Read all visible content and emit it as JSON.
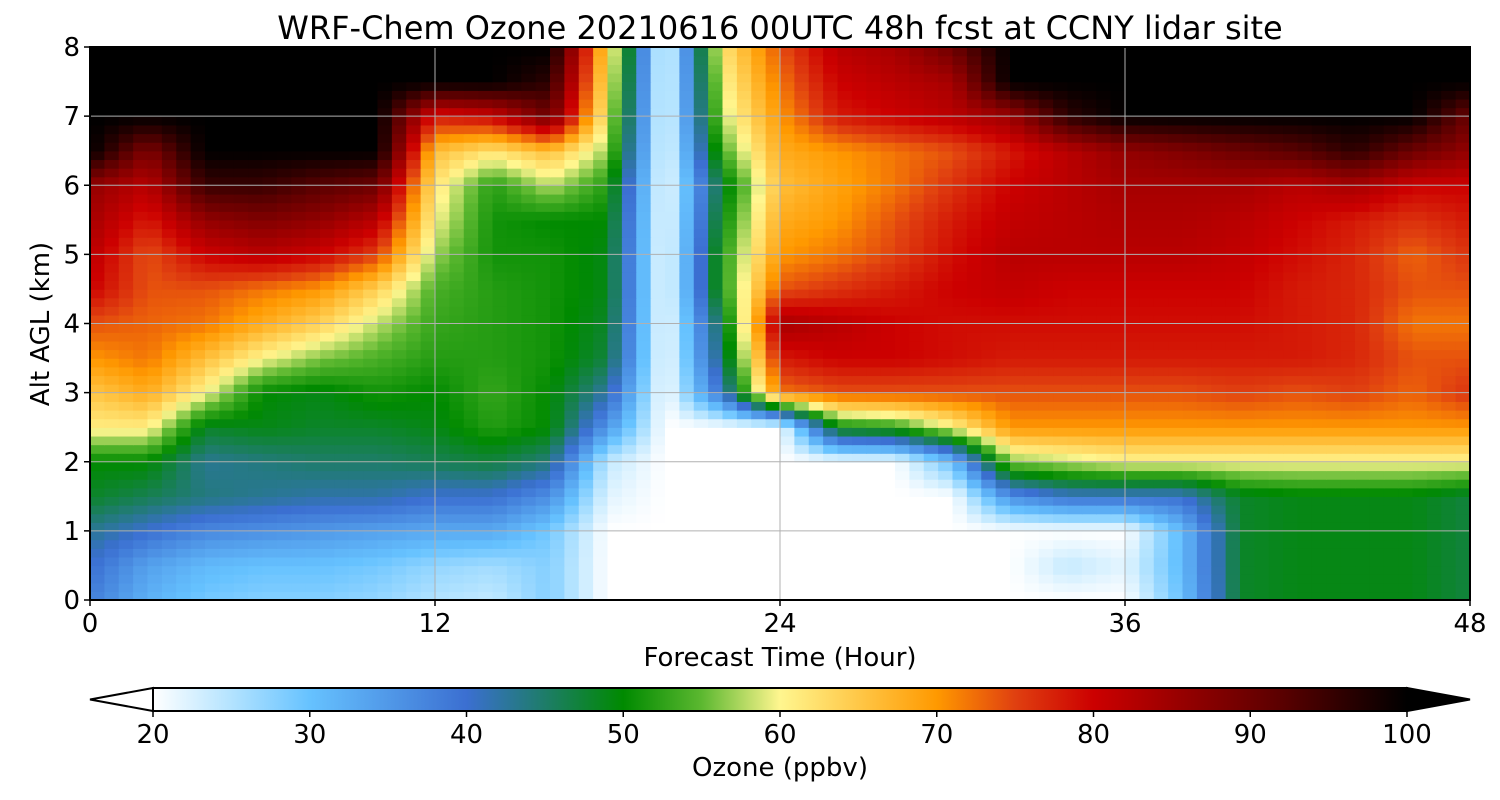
{
  "chart_data": {
    "type": "heatmap",
    "title": "WRF-Chem Ozone  20210616 00UTC 48h fcst at CCNY lidar site",
    "xlabel": "Forecast Time (Hour)",
    "ylabel": "Alt AGL (km)",
    "xlim": [
      0,
      48
    ],
    "ylim": [
      0,
      8
    ],
    "x_ticks": [
      0,
      12,
      24,
      36,
      48
    ],
    "y_ticks": [
      0,
      1,
      2,
      3,
      4,
      5,
      6,
      7,
      8
    ],
    "grid": true,
    "x": [
      0,
      2,
      4,
      6,
      8,
      10,
      12,
      14,
      16,
      18,
      20,
      22,
      24,
      26,
      28,
      30,
      32,
      34,
      36,
      38,
      40,
      42,
      44,
      46,
      48
    ],
    "y": [
      0,
      0.5,
      1,
      1.5,
      2,
      2.5,
      3,
      3.5,
      4,
      4.5,
      5,
      5.5,
      6,
      6.5,
      7,
      7.5,
      8
    ],
    "z": [
      [
        38,
        32,
        29,
        28,
        28,
        27,
        25,
        24,
        28,
        20,
        20,
        20,
        20,
        20,
        20,
        20,
        20,
        20,
        20,
        30,
        48,
        49,
        49,
        49,
        47
      ],
      [
        40,
        34,
        31,
        30,
        30,
        29,
        27,
        26,
        28,
        20,
        20,
        20,
        20,
        20,
        20,
        20,
        20,
        24,
        22,
        31,
        48,
        49,
        49,
        49,
        47
      ],
      [
        43,
        40,
        37,
        36,
        35,
        34,
        33,
        33,
        29,
        20,
        20,
        20,
        20,
        20,
        20,
        20,
        20,
        20,
        20,
        31,
        48,
        49,
        49,
        49,
        47
      ],
      [
        48,
        46,
        44,
        43,
        42,
        42,
        40,
        40,
        36,
        22,
        20,
        20,
        20,
        20,
        20,
        20,
        36,
        40,
        40,
        40,
        48,
        49,
        49,
        49,
        47
      ],
      [
        50,
        50,
        43,
        44,
        45,
        45,
        46,
        47,
        44,
        24,
        20,
        20,
        20,
        20,
        20,
        30,
        56,
        58,
        60,
        60,
        60,
        60,
        60,
        60,
        60
      ],
      [
        61,
        61,
        48,
        49,
        48,
        48,
        49,
        52,
        50,
        35,
        20,
        20,
        20,
        50,
        52,
        60,
        70,
        70,
        70,
        70,
        70,
        70,
        70,
        70,
        70
      ],
      [
        65,
        68,
        60,
        50,
        49,
        51,
        50,
        53,
        50,
        42,
        20,
        40,
        72,
        74,
        74,
        74,
        74,
        74,
        74,
        74,
        75,
        74,
        75,
        73,
        76
      ],
      [
        70,
        72,
        66,
        60,
        56,
        54,
        52,
        52,
        51,
        47,
        20,
        45,
        78,
        80,
        80,
        79,
        78,
        78,
        78,
        78,
        78,
        78,
        77,
        74,
        74
      ],
      [
        74,
        73,
        72,
        68,
        64,
        58,
        53,
        52,
        51,
        48,
        20,
        47,
        84,
        82,
        80,
        79,
        79,
        79,
        79,
        79,
        79,
        78,
        77,
        72,
        72
      ],
      [
        80,
        74,
        74,
        72,
        70,
        64,
        54,
        52,
        51,
        49,
        20,
        52,
        74,
        76,
        78,
        80,
        81,
        80,
        80,
        80,
        80,
        78,
        77,
        74,
        74
      ],
      [
        82,
        74,
        80,
        82,
        80,
        75,
        57,
        51,
        51,
        49,
        20,
        52,
        70,
        72,
        75,
        79,
        82,
        82,
        82,
        82,
        81,
        79,
        77,
        73,
        76
      ],
      [
        84,
        78,
        86,
        88,
        86,
        82,
        60,
        51,
        50,
        50,
        20,
        50,
        68,
        70,
        74,
        78,
        81,
        82,
        83,
        83,
        82,
        80,
        78,
        76,
        78
      ],
      [
        86,
        82,
        95,
        95,
        92,
        90,
        62,
        52,
        58,
        52,
        20,
        48,
        66,
        69,
        72,
        76,
        80,
        82,
        84,
        84,
        84,
        82,
        84,
        80,
        80
      ],
      [
        100,
        88,
        100,
        100,
        100,
        100,
        66,
        62,
        66,
        57,
        20,
        54,
        68,
        70,
        72,
        74,
        78,
        82,
        86,
        88,
        90,
        92,
        96,
        90,
        86
      ],
      [
        100,
        100,
        100,
        100,
        100,
        100,
        78,
        80,
        90,
        60,
        20,
        58,
        70,
        78,
        80,
        82,
        85,
        96,
        100,
        100,
        100,
        100,
        100,
        100,
        90
      ],
      [
        100,
        100,
        100,
        100,
        100,
        100,
        100,
        100,
        96,
        62,
        20,
        60,
        72,
        80,
        82,
        84,
        100,
        100,
        100,
        100,
        100,
        100,
        100,
        100,
        100
      ],
      [
        100,
        100,
        100,
        100,
        100,
        100,
        100,
        100,
        100,
        64,
        20,
        62,
        74,
        82,
        84,
        90,
        100,
        100,
        100,
        100,
        100,
        100,
        100,
        100,
        100
      ]
    ],
    "colorbar": {
      "label": "Ozone  (ppbv)",
      "min": 20,
      "max": 100,
      "ticks": [
        20,
        30,
        40,
        50,
        60,
        70,
        80,
        90,
        100
      ],
      "extend": "both",
      "orientation": "horizontal"
    },
    "colors": {
      "stops": [
        "#ffffff",
        "#b3e3ff",
        "#66c2ff",
        "#3b6fd1",
        "#008a00",
        "#5cb830",
        "#fff68f",
        "#ff9900",
        "#e04010",
        "#cc0000",
        "#5a0000",
        "#000000"
      ],
      "stop_values": [
        20,
        25,
        30,
        40,
        50,
        55,
        60,
        70,
        75,
        80,
        92,
        100
      ]
    }
  }
}
